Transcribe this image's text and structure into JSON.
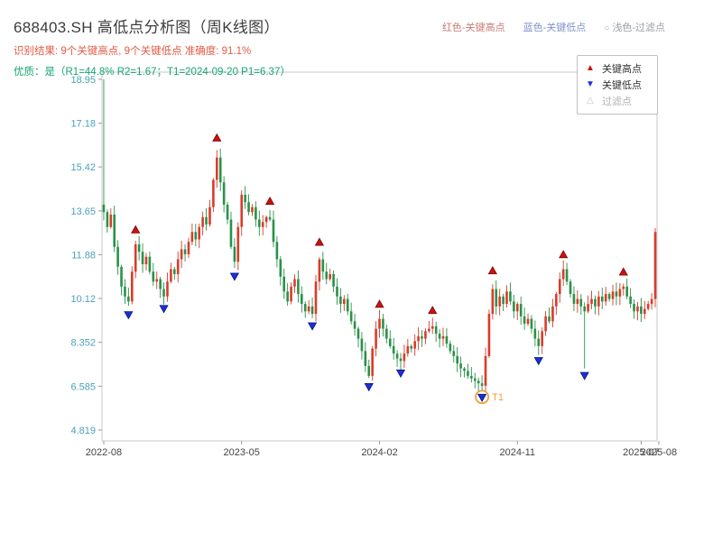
{
  "title": "688403.SH 高低点分析图（周K线图）",
  "subtitle_result": "识别结果: 9个关键高点, 9个关键低点  准确度: 91.1%",
  "subtitle_quality": "优质：是（R1=44.8%  R2=1.67；T1=2024-09-20 P1=6.37）",
  "stats": {
    "key_high_count": 9,
    "key_low_count": 9,
    "accuracy": "91.1%",
    "r1": "44.8%",
    "r2": "1.67",
    "t1_date": "2024-09-20",
    "p1": "6.37",
    "quality": "是"
  },
  "header_legend": {
    "items": [
      {
        "label": "红色-关键高点"
      },
      {
        "label": "蓝色-关键低点"
      },
      {
        "label": "浅色-过滤点",
        "icon": "○"
      }
    ]
  },
  "plot_legend": {
    "position": "upper-right",
    "items": [
      {
        "label": "关键高点",
        "marker": "▲"
      },
      {
        "label": "关键低点",
        "marker": "▼"
      },
      {
        "label": "过滤点",
        "marker": "△"
      }
    ]
  },
  "colors": {
    "candle_up": "#d93b2b",
    "candle_down": "#2a9149",
    "key_high": "#cc1111",
    "key_high_edge": "#6e0000",
    "key_low": "#1b2fd6",
    "key_low_edge": "#001070",
    "filtered": "#c0c0c0",
    "t1": "#f0a13a",
    "title": "#3c3c3c",
    "result_text": "#e25b45",
    "quality_text": "#16a571",
    "y_label": "#4aa2ba",
    "x_label": "#444444",
    "axis": "#999999",
    "border": "#c8c8c8",
    "legend_red_text": "#c97c74",
    "legend_blue_text": "#8292c8",
    "legend_gray_text": "#9aa0a6"
  },
  "chart_data": {
    "type": "candlestick",
    "title": "688403.SH 高低点分析图（周K线图）",
    "xlabel": "",
    "ylabel": "",
    "grid": false,
    "legend_position": "upper-right",
    "y_axis": {
      "range": [
        4.38,
        19.24
      ],
      "ticks": [
        "18.95",
        "17.18",
        "15.42",
        "13.65",
        "11.88",
        "10.12",
        "8.352",
        "6.585",
        "4.819"
      ],
      "values": [
        18.95,
        17.18,
        15.42,
        13.65,
        11.88,
        10.12,
        8.352,
        6.585,
        4.819
      ]
    },
    "x_axis": {
      "ticks": [
        {
          "label": "2022-08",
          "week": 0
        },
        {
          "label": "2023-05",
          "week": 39
        },
        {
          "label": "2024-02",
          "week": 78
        },
        {
          "label": "2024-11",
          "week": 117
        },
        {
          "label": "2025-07",
          "week": 152
        },
        {
          "label": "2025-08",
          "week": 157
        }
      ]
    },
    "first_open": 13.9,
    "closes": [
      13.6,
      13.0,
      13.5,
      12.2,
      11.4,
      10.6,
      10.2,
      10.0,
      11.2,
      12.3,
      12.0,
      11.5,
      11.8,
      11.2,
      10.8,
      10.9,
      10.5,
      10.2,
      10.8,
      11.3,
      11.1,
      11.7,
      12.1,
      11.9,
      12.4,
      12.8,
      12.5,
      13.0,
      13.4,
      13.1,
      13.8,
      14.9,
      15.8,
      14.8,
      13.9,
      13.3,
      12.2,
      11.6,
      13.0,
      14.3,
      14.0,
      13.6,
      13.8,
      13.3,
      13.0,
      13.2,
      13.4,
      13.3,
      12.4,
      11.7,
      11.0,
      10.4,
      10.0,
      10.6,
      10.9,
      10.3,
      9.9,
      9.6,
      9.8,
      9.5,
      10.8,
      11.7,
      11.2,
      10.9,
      11.1,
      10.6,
      10.2,
      9.9,
      10.1,
      9.6,
      9.2,
      8.9,
      8.5,
      8.0,
      7.4,
      7.0,
      8.1,
      8.9,
      9.3,
      8.9,
      8.5,
      8.2,
      7.9,
      7.7,
      7.6,
      7.9,
      8.2,
      8.1,
      8.4,
      8.6,
      8.5,
      8.8,
      8.9,
      9.0,
      8.7,
      8.5,
      8.6,
      8.3,
      8.0,
      7.8,
      7.5,
      7.3,
      7.2,
      7.0,
      6.9,
      6.8,
      6.7,
      6.6,
      7.8,
      9.5,
      10.5,
      9.8,
      10.2,
      9.9,
      10.4,
      10.0,
      9.6,
      9.9,
      9.4,
      9.1,
      9.3,
      8.9,
      8.5,
      8.2,
      8.8,
      9.4,
      9.2,
      9.8,
      10.3,
      10.9,
      11.3,
      10.8,
      10.3,
      9.9,
      10.1,
      9.8,
      9.6,
      9.9,
      10.1,
      9.8,
      10.2,
      10.0,
      10.3,
      10.1,
      10.4,
      10.2,
      10.5,
      10.6,
      10.2,
      9.9,
      9.6,
      9.8,
      9.5,
      9.7,
      9.9,
      10.1,
      12.8
    ],
    "wick_overrides": {
      "0": {
        "high": 18.95
      },
      "32": {
        "high": 16.1
      },
      "107": {
        "low": 6.37
      },
      "136": {
        "low": 7.3
      },
      "156": {
        "high": 12.95
      }
    },
    "key_highs": [
      {
        "week": 9,
        "value": 12.65
      },
      {
        "week": 32,
        "value": 16.35
      },
      {
        "week": 47,
        "value": 13.8
      },
      {
        "week": 61,
        "value": 12.15
      },
      {
        "week": 78,
        "value": 9.65
      },
      {
        "week": 93,
        "value": 9.4
      },
      {
        "week": 110,
        "value": 11.0
      },
      {
        "week": 130,
        "value": 11.65
      },
      {
        "week": 147,
        "value": 10.95
      }
    ],
    "key_lows": [
      {
        "week": 7,
        "value": 9.7
      },
      {
        "week": 17,
        "value": 9.95
      },
      {
        "week": 37,
        "value": 11.25
      },
      {
        "week": 59,
        "value": 9.25
      },
      {
        "week": 75,
        "value": 6.8
      },
      {
        "week": 84,
        "value": 7.35
      },
      {
        "week": 107,
        "value": 6.37
      },
      {
        "week": 123,
        "value": 7.85
      },
      {
        "week": 136,
        "value": 7.25
      }
    ],
    "t1": {
      "week": 107,
      "value": 6.37,
      "label": "T1"
    }
  }
}
